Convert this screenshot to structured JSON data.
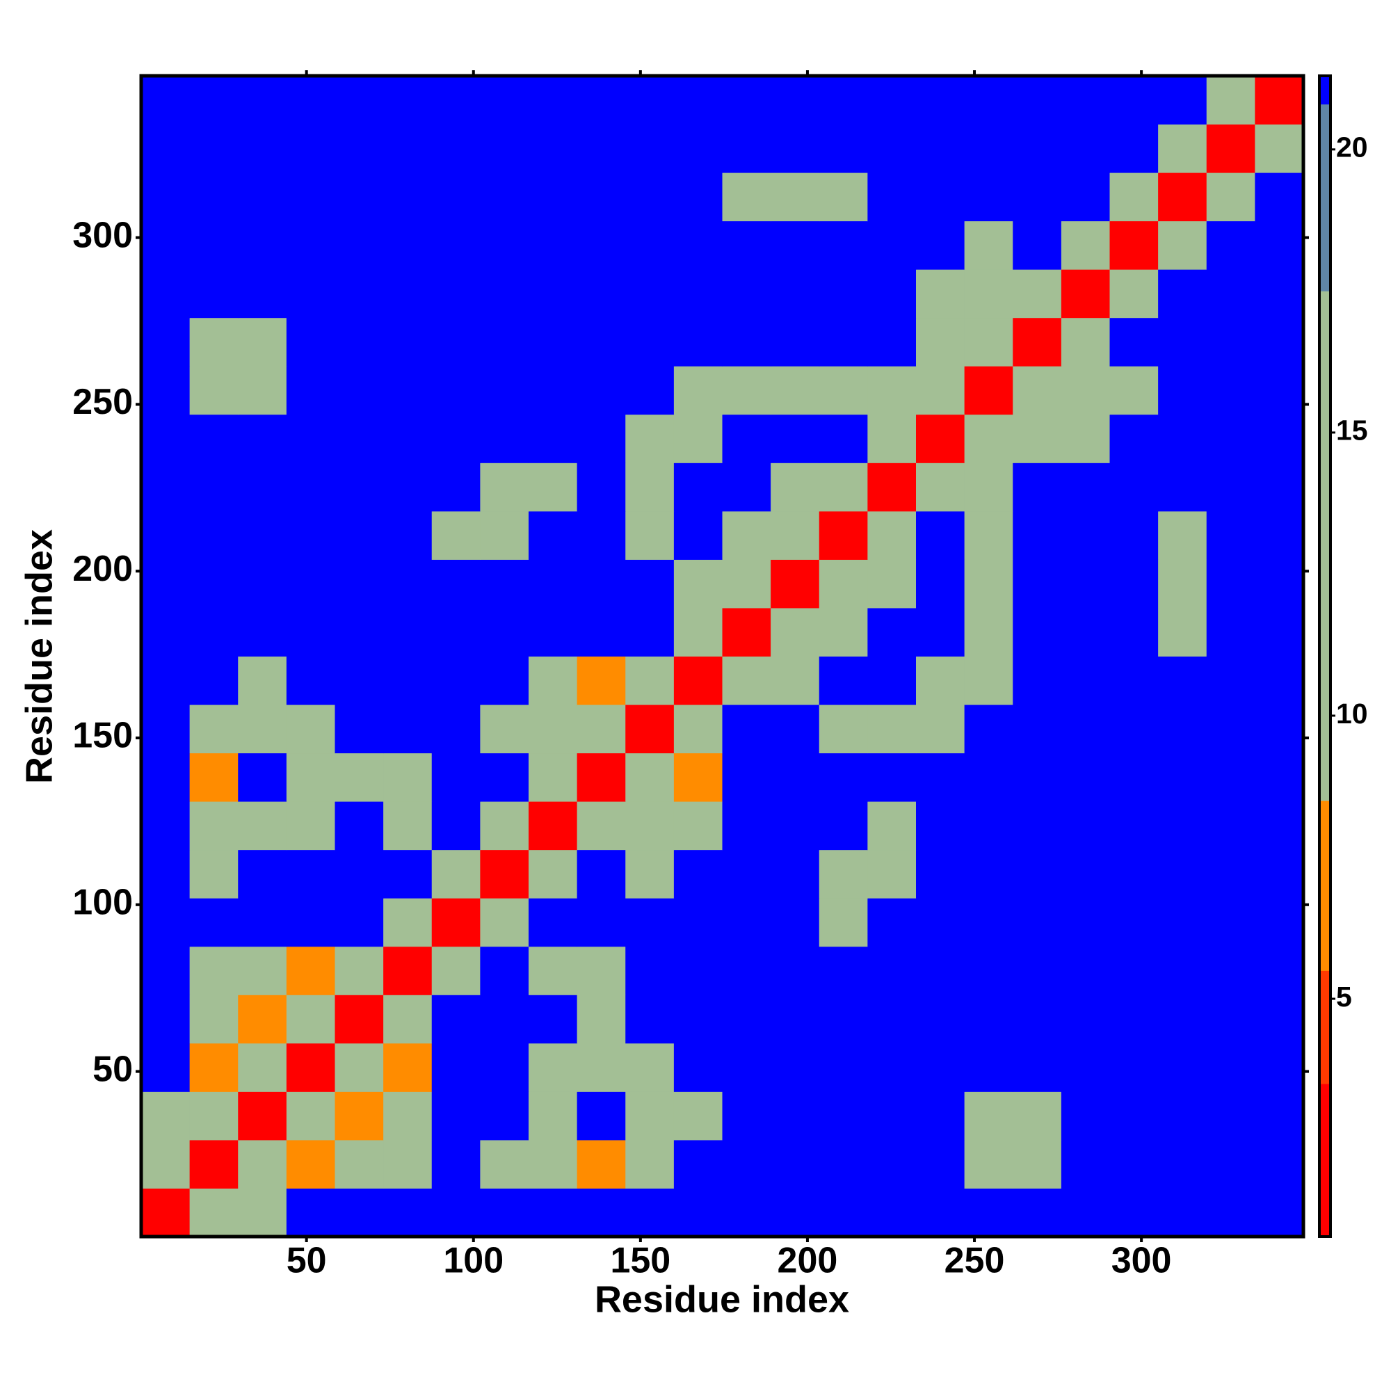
{
  "chart_data": {
    "type": "heatmap",
    "xlabel": "Residue index",
    "ylabel": "Residue index",
    "xlim": [
      0.5,
      348.5
    ],
    "ylim": [
      0.5,
      348.5
    ],
    "xticks": [
      50,
      100,
      150,
      200,
      250,
      300
    ],
    "yticks": [
      50,
      100,
      150,
      200,
      250,
      300
    ],
    "bins": [
      0.5,
      15,
      29.5,
      44,
      58.5,
      73,
      87.5,
      102,
      116.5,
      131,
      145.5,
      160,
      174.5,
      189,
      203.5,
      218,
      232.5,
      247,
      261.5,
      276,
      290.5,
      305,
      319.5,
      334,
      348.5
    ],
    "z": [
      [
        2,
        12,
        13,
        21,
        21,
        21,
        21,
        21,
        21,
        21,
        21,
        21,
        21,
        21,
        21,
        21,
        21,
        21,
        21,
        21,
        21,
        21,
        21,
        21
      ],
      [
        12,
        2,
        12,
        8,
        11,
        12,
        21,
        13,
        12,
        8,
        11,
        21,
        21,
        21,
        21,
        21,
        21,
        13,
        13,
        21,
        21,
        21,
        21,
        21
      ],
      [
        13,
        12,
        2,
        12,
        8,
        11,
        21,
        21,
        13,
        21,
        11,
        12,
        21,
        21,
        21,
        21,
        21,
        12,
        12,
        21,
        21,
        21,
        21,
        21
      ],
      [
        21,
        8,
        12,
        2,
        12,
        8,
        21,
        21,
        12,
        12,
        11,
        21,
        21,
        21,
        21,
        21,
        21,
        21,
        21,
        21,
        21,
        21,
        21,
        21
      ],
      [
        21,
        11,
        8,
        12,
        2,
        12,
        21,
        21,
        21,
        13,
        21,
        21,
        21,
        21,
        21,
        21,
        21,
        21,
        21,
        21,
        21,
        21,
        21,
        21
      ],
      [
        21,
        12,
        11,
        8,
        12,
        2,
        12,
        21,
        10,
        11,
        21,
        21,
        21,
        21,
        21,
        21,
        21,
        21,
        21,
        21,
        21,
        21,
        21,
        21
      ],
      [
        21,
        21,
        21,
        21,
        21,
        12,
        2,
        12,
        21,
        21,
        21,
        21,
        21,
        21,
        13,
        21,
        21,
        21,
        21,
        21,
        21,
        21,
        21,
        21
      ],
      [
        21,
        13,
        21,
        21,
        21,
        21,
        12,
        2,
        12,
        21,
        12,
        21,
        21,
        21,
        11,
        13,
        21,
        21,
        21,
        21,
        21,
        21,
        21,
        21
      ],
      [
        21,
        12,
        13,
        12,
        21,
        10,
        21,
        12,
        2,
        12,
        9,
        11,
        21,
        21,
        21,
        10,
        21,
        21,
        21,
        21,
        21,
        21,
        21,
        21
      ],
      [
        21,
        8,
        21,
        12,
        13,
        11,
        21,
        21,
        12,
        2,
        12,
        8,
        21,
        21,
        21,
        21,
        21,
        21,
        21,
        21,
        21,
        21,
        21,
        21
      ],
      [
        21,
        11,
        11,
        11,
        21,
        21,
        21,
        12,
        9,
        12,
        2,
        12,
        21,
        21,
        13,
        11,
        10,
        21,
        21,
        21,
        21,
        21,
        21,
        21
      ],
      [
        21,
        21,
        12,
        21,
        21,
        21,
        21,
        21,
        11,
        8,
        12,
        2,
        12,
        11,
        21,
        21,
        11,
        10,
        21,
        21,
        21,
        21,
        21,
        21
      ],
      [
        21,
        21,
        21,
        21,
        21,
        21,
        21,
        21,
        21,
        21,
        21,
        12,
        2,
        12,
        10,
        21,
        21,
        11,
        21,
        21,
        21,
        13,
        21,
        21
      ],
      [
        21,
        21,
        21,
        21,
        21,
        21,
        21,
        21,
        21,
        21,
        21,
        11,
        12,
        2,
        12,
        12,
        21,
        12,
        21,
        21,
        21,
        11,
        21,
        21
      ],
      [
        21,
        21,
        21,
        21,
        21,
        21,
        13,
        11,
        21,
        21,
        13,
        21,
        10,
        12,
        2,
        12,
        21,
        13,
        21,
        21,
        21,
        12,
        21,
        21
      ],
      [
        21,
        21,
        21,
        21,
        21,
        21,
        21,
        13,
        10,
        21,
        11,
        21,
        21,
        12,
        12,
        2,
        12,
        11,
        21,
        21,
        21,
        21,
        21,
        21
      ],
      [
        21,
        21,
        21,
        21,
        21,
        21,
        21,
        21,
        21,
        21,
        10,
        11,
        21,
        21,
        21,
        12,
        2,
        12,
        9,
        11,
        21,
        21,
        21,
        21
      ],
      [
        21,
        13,
        12,
        21,
        21,
        21,
        21,
        21,
        21,
        21,
        21,
        10,
        11,
        12,
        13,
        11,
        12,
        2,
        12,
        10,
        12,
        21,
        21,
        21
      ],
      [
        21,
        13,
        12,
        21,
        21,
        21,
        21,
        21,
        21,
        21,
        21,
        21,
        21,
        21,
        21,
        21,
        9,
        12,
        2,
        12,
        21,
        21,
        21,
        21
      ],
      [
        21,
        21,
        21,
        21,
        21,
        21,
        21,
        21,
        21,
        21,
        21,
        21,
        21,
        21,
        21,
        21,
        11,
        10,
        12,
        2,
        12,
        21,
        21,
        21
      ],
      [
        21,
        21,
        21,
        21,
        21,
        21,
        21,
        21,
        21,
        21,
        21,
        21,
        21,
        21,
        21,
        21,
        21,
        12,
        21,
        12,
        2,
        12,
        21,
        21
      ],
      [
        21,
        21,
        21,
        21,
        21,
        21,
        21,
        21,
        21,
        21,
        21,
        21,
        13,
        11,
        12,
        21,
        21,
        21,
        21,
        21,
        12,
        2,
        12,
        21
      ],
      [
        21,
        21,
        21,
        21,
        21,
        21,
        21,
        21,
        21,
        21,
        21,
        21,
        21,
        21,
        21,
        21,
        21,
        21,
        21,
        21,
        21,
        12,
        2,
        12
      ],
      [
        21,
        21,
        21,
        21,
        21,
        21,
        21,
        21,
        21,
        21,
        21,
        21,
        21,
        21,
        21,
        21,
        21,
        21,
        21,
        21,
        21,
        21,
        12,
        2
      ]
    ],
    "clim": [
      0.8,
      21.3
    ],
    "cticks": [
      5,
      10,
      15,
      20
    ],
    "colorscale": [
      [
        0.8,
        "#ff0000"
      ],
      [
        3.5,
        "#ff3a00"
      ],
      [
        5.5,
        "#ff8c00"
      ],
      [
        8.5,
        "#a3bf95"
      ],
      [
        17.5,
        "#5f86a8"
      ],
      [
        20.8,
        "#0000ff"
      ]
    ]
  }
}
